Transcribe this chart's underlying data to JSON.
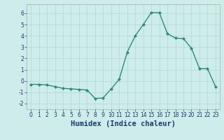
{
  "x": [
    0,
    1,
    2,
    3,
    4,
    5,
    6,
    7,
    8,
    9,
    10,
    11,
    12,
    13,
    14,
    15,
    16,
    17,
    18,
    19,
    20,
    21,
    22,
    23
  ],
  "y": [
    -0.3,
    -0.3,
    -0.35,
    -0.5,
    -0.65,
    -0.7,
    -0.75,
    -0.8,
    -1.55,
    -1.5,
    -0.7,
    0.15,
    2.55,
    4.0,
    5.0,
    6.05,
    6.05,
    4.2,
    3.8,
    3.75,
    2.9,
    1.1,
    1.1,
    -0.5
  ],
  "line_color": "#2e8b7a",
  "marker": "D",
  "marker_size": 2.0,
  "linewidth": 1.0,
  "xlabel": "Humidex (Indice chaleur)",
  "xlim": [
    -0.5,
    23.5
  ],
  "ylim": [
    -2.5,
    6.8
  ],
  "yticks": [
    -2,
    -1,
    0,
    1,
    2,
    3,
    4,
    5,
    6
  ],
  "xticks": [
    0,
    1,
    2,
    3,
    4,
    5,
    6,
    7,
    8,
    9,
    10,
    11,
    12,
    13,
    14,
    15,
    16,
    17,
    18,
    19,
    20,
    21,
    22,
    23
  ],
  "bg_color": "#cdecea",
  "grid_color": "#afd8d5",
  "tick_fontsize": 5.5,
  "label_fontsize": 7.5,
  "label_color": "#1a3a6e"
}
